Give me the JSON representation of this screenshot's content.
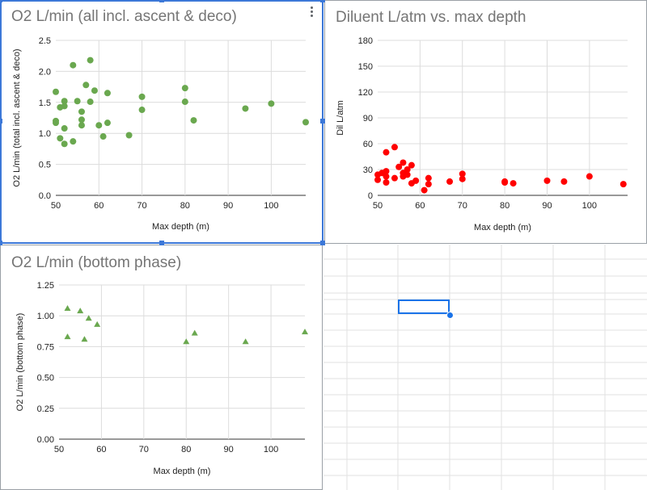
{
  "sheet": {
    "menu_icon": "more-vert-icon",
    "accent_color": "#1a73e8"
  },
  "chart_data": [
    {
      "type": "scatter",
      "title": "O2 L/min (all incl. ascent & deco)",
      "xlabel": "Max depth (m)",
      "ylabel": "O2 L/min (total incl. ascent & deco)",
      "xlim": [
        50,
        108
      ],
      "ylim": [
        0,
        2.5
      ],
      "xticks": [
        "50",
        "60",
        "70",
        "80",
        "90",
        "100"
      ],
      "yticks": [
        "0.0",
        "0.5",
        "1.0",
        "1.5",
        "2.0",
        "2.5"
      ],
      "grid": true,
      "color": "#6aa84f",
      "marker": "circle",
      "points": [
        [
          50,
          1.67
        ],
        [
          50,
          1.2
        ],
        [
          50,
          1.17
        ],
        [
          51,
          1.42
        ],
        [
          51,
          0.92
        ],
        [
          52,
          1.52
        ],
        [
          52,
          1.44
        ],
        [
          52,
          1.08
        ],
        [
          52,
          0.83
        ],
        [
          54,
          2.1
        ],
        [
          54,
          0.87
        ],
        [
          55,
          1.52
        ],
        [
          56,
          1.35
        ],
        [
          56,
          1.22
        ],
        [
          56,
          1.13
        ],
        [
          57,
          1.78
        ],
        [
          58,
          2.18
        ],
        [
          58,
          1.51
        ],
        [
          59,
          1.69
        ],
        [
          60,
          1.13
        ],
        [
          61,
          0.95
        ],
        [
          62,
          1.65
        ],
        [
          62,
          1.17
        ],
        [
          67,
          0.97
        ],
        [
          70,
          1.59
        ],
        [
          70,
          1.38
        ],
        [
          80,
          1.73
        ],
        [
          80,
          1.51
        ],
        [
          82,
          1.21
        ],
        [
          94,
          1.4
        ],
        [
          100,
          1.48
        ],
        [
          108,
          1.18
        ]
      ]
    },
    {
      "type": "scatter",
      "title": "Diluent L/atm vs. max depth",
      "xlabel": "Max depth (m)",
      "ylabel": "Dil L/atm",
      "xlim": [
        50,
        109
      ],
      "ylim": [
        0,
        180
      ],
      "xticks": [
        "50",
        "60",
        "70",
        "80",
        "90",
        "100"
      ],
      "yticks": [
        "0",
        "30",
        "60",
        "90",
        "120",
        "150",
        "180"
      ],
      "grid": true,
      "color": "#ff0000",
      "marker": "circle",
      "points": [
        [
          50,
          18
        ],
        [
          50,
          24
        ],
        [
          51,
          26
        ],
        [
          52,
          22
        ],
        [
          52,
          50
        ],
        [
          52,
          28
        ],
        [
          52,
          15
        ],
        [
          54,
          56
        ],
        [
          54,
          20
        ],
        [
          55,
          33
        ],
        [
          56,
          38
        ],
        [
          56,
          26
        ],
        [
          56,
          22
        ],
        [
          57,
          30
        ],
        [
          57,
          24
        ],
        [
          58,
          35
        ],
        [
          58,
          14
        ],
        [
          59,
          17
        ],
        [
          61,
          6
        ],
        [
          62,
          20
        ],
        [
          62,
          13
        ],
        [
          67,
          16
        ],
        [
          70,
          25
        ],
        [
          70,
          19
        ],
        [
          80,
          16
        ],
        [
          80,
          15
        ],
        [
          82,
          14
        ],
        [
          90,
          17
        ],
        [
          94,
          16
        ],
        [
          100,
          22
        ],
        [
          108,
          13
        ]
      ]
    },
    {
      "type": "scatter",
      "title": "O2 L/min (bottom phase)",
      "xlabel": "Max depth (m)",
      "ylabel": "O2 L/min (bottom phase)",
      "xlim": [
        50,
        108
      ],
      "ylim": [
        0,
        1.25
      ],
      "xticks": [
        "50",
        "60",
        "70",
        "80",
        "90",
        "100"
      ],
      "yticks": [
        "0.00",
        "0.25",
        "0.50",
        "0.75",
        "1.00",
        "1.25"
      ],
      "grid": true,
      "color": "#6aa84f",
      "marker": "triangle",
      "points": [
        [
          52,
          1.06
        ],
        [
          52,
          0.83
        ],
        [
          55,
          1.04
        ],
        [
          56,
          0.81
        ],
        [
          57,
          0.98
        ],
        [
          59,
          0.93
        ],
        [
          80,
          0.79
        ],
        [
          82,
          0.86
        ],
        [
          94,
          0.79
        ],
        [
          108,
          0.87
        ]
      ]
    }
  ]
}
